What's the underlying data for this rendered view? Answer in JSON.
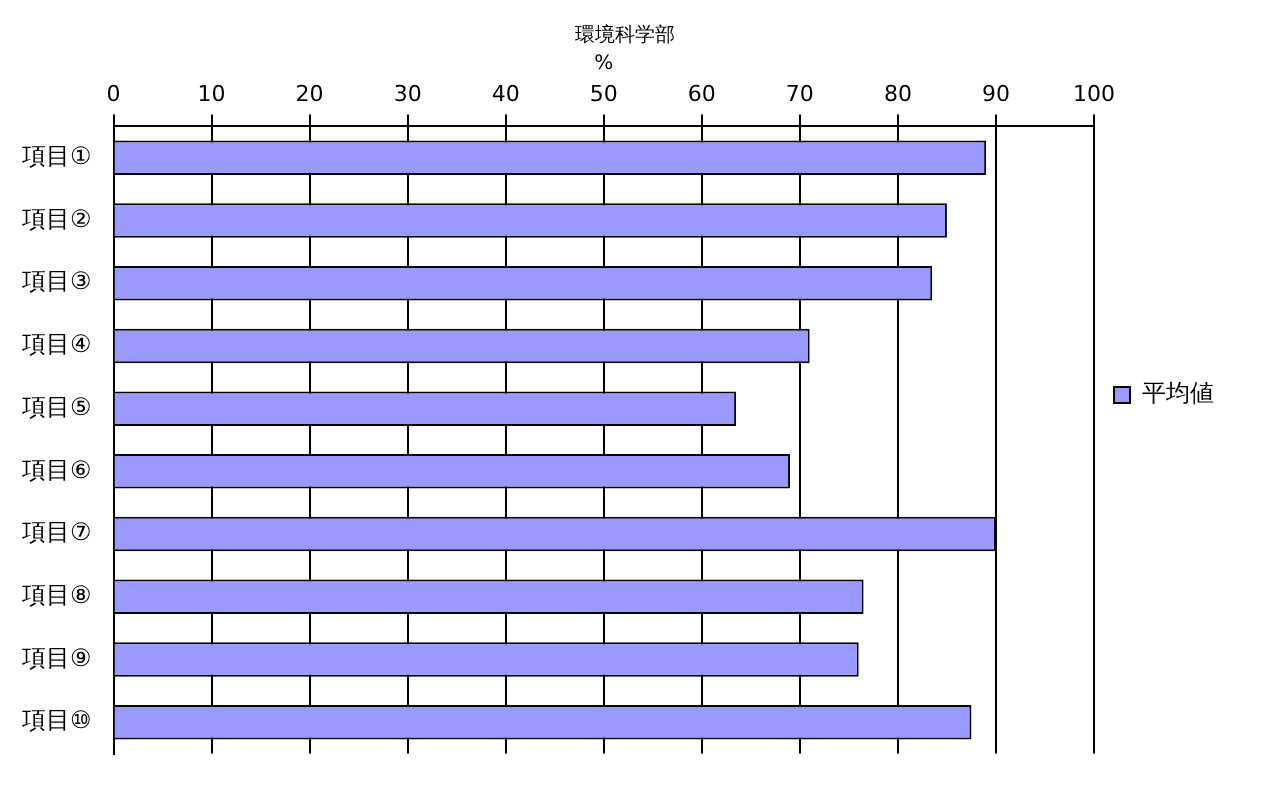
{
  "chart_data": {
    "type": "bar",
    "orientation": "horizontal",
    "title": "環境科学部",
    "xlabel": "%",
    "categories": [
      "項目①",
      "項目②",
      "項目③",
      "項目④",
      "項目⑤",
      "項目⑥",
      "項目⑦",
      "項目⑧",
      "項目⑨",
      "項目⑩"
    ],
    "series": [
      {
        "name": "平均値",
        "color": "#9999ff",
        "values": [
          89,
          85,
          83.5,
          71,
          63.5,
          69,
          90,
          76.5,
          76,
          87.5
        ]
      }
    ],
    "xlim": [
      0,
      100
    ],
    "xticks": [
      0,
      10,
      20,
      30,
      40,
      50,
      60,
      70,
      80,
      90,
      100
    ],
    "grid": "x",
    "legend": "right"
  }
}
